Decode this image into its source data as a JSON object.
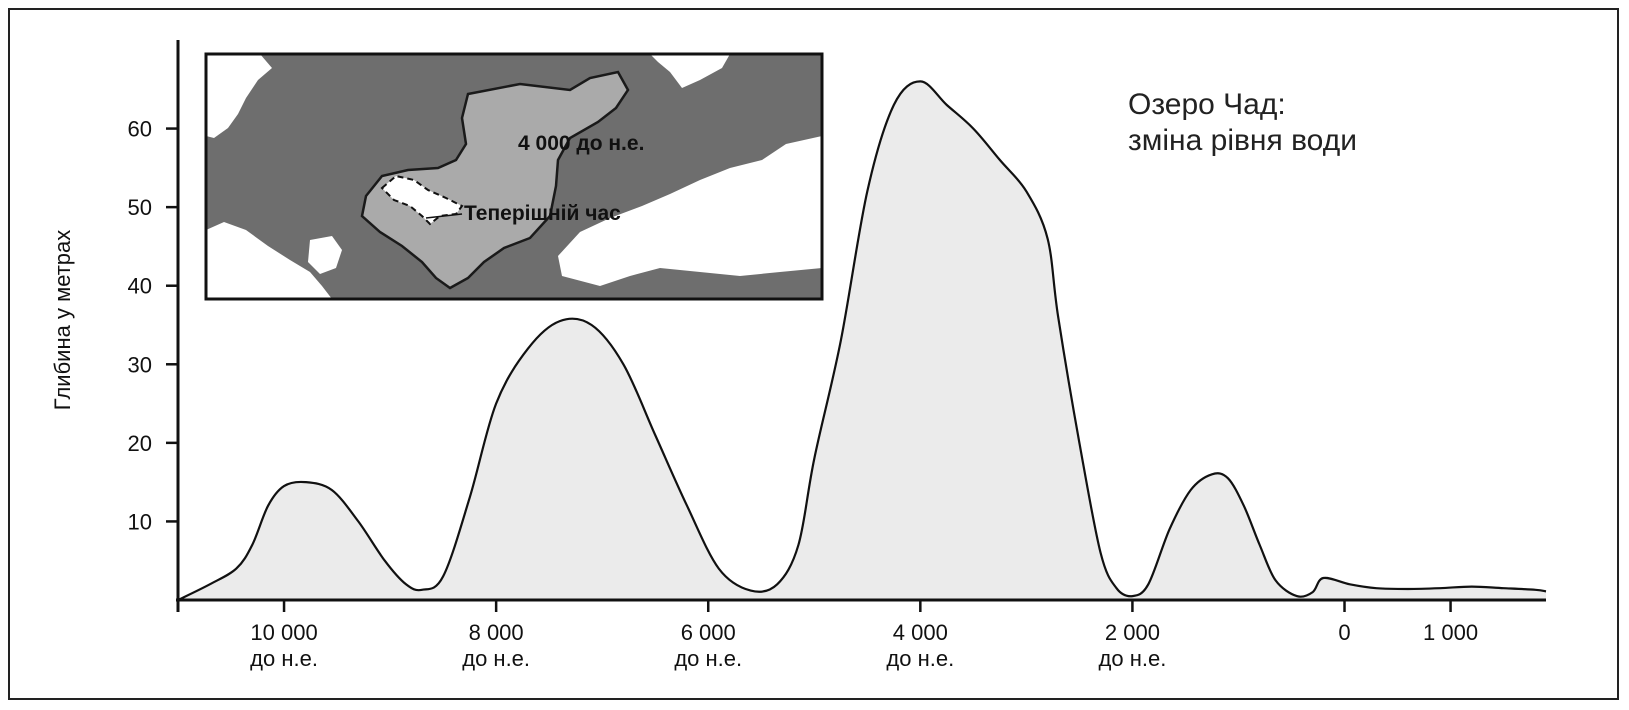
{
  "chart_data": {
    "type": "area",
    "title_lines": [
      "Озеро Чад:",
      "зміна рівня води"
    ],
    "xlabel": "",
    "ylabel": "Глибина у метрах",
    "ylim": [
      0,
      70
    ],
    "xlim": [
      -11000,
      1900
    ],
    "y_ticks": [
      10,
      20,
      30,
      40,
      50,
      60
    ],
    "x_ticks": [
      {
        "value": -10000,
        "line1": "10 000",
        "line2": "до н.е."
      },
      {
        "value": -8000,
        "line1": "8 000",
        "line2": "до н.е."
      },
      {
        "value": -6000,
        "line1": "6 000",
        "line2": "до н.е."
      },
      {
        "value": -4000,
        "line1": "4 000",
        "line2": "до н.е."
      },
      {
        "value": -2000,
        "line1": "2 000",
        "line2": "до н.е."
      },
      {
        "value": 0,
        "line1": "0",
        "line2": ""
      },
      {
        "value": 1000,
        "line1": "1 000",
        "line2": ""
      }
    ],
    "x": [
      -11000,
      -10700,
      -10450,
      -10300,
      -10150,
      -10000,
      -9800,
      -9550,
      -9300,
      -9050,
      -8850,
      -8700,
      -8500,
      -8250,
      -8000,
      -7700,
      -7400,
      -7100,
      -6800,
      -6500,
      -6200,
      -5900,
      -5600,
      -5350,
      -5150,
      -5000,
      -4750,
      -4500,
      -4250,
      -4000,
      -3750,
      -3500,
      -3250,
      -3000,
      -2800,
      -2700,
      -2500,
      -2300,
      -2150,
      -2000,
      -1850,
      -1650,
      -1450,
      -1250,
      -1100,
      -950,
      -800,
      -650,
      -450,
      -300,
      -200,
      50,
      300,
      600,
      900,
      1200,
      1500,
      1800,
      1900
    ],
    "values": [
      0,
      2,
      4,
      7,
      12,
      14.5,
      15,
      14,
      10,
      5,
      2,
      1.3,
      3,
      13,
      25,
      32,
      35.5,
      35,
      30,
      21,
      12,
      4,
      1.2,
      2,
      7,
      18,
      33,
      52,
      63,
      66,
      63,
      60,
      56,
      52,
      46,
      36,
      20,
      6,
      1.5,
      0.5,
      2,
      9,
      14,
      16,
      15.5,
      12,
      7,
      2.5,
      0.5,
      1,
      2.8,
      2,
      1.5,
      1.4,
      1.5,
      1.7,
      1.5,
      1.3,
      1.1
    ],
    "fill_color": "#ebebeb",
    "line_color": "#111111",
    "grid": false,
    "inset": {
      "labels": [
        "4 000 до н.е.",
        "Теперішній час"
      ],
      "land_color": "#6e6e6e",
      "lake_4000_color": "#aaaaaa",
      "lake_present_color": "#ffffff"
    }
  }
}
